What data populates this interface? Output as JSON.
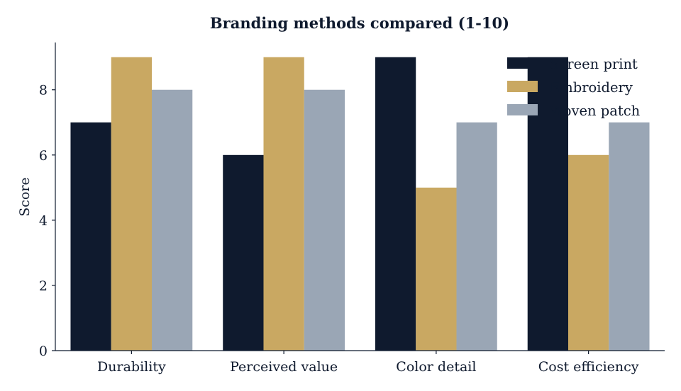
{
  "chart_data": {
    "type": "bar",
    "title": "Branding methods compared (1-10)",
    "xlabel": "",
    "ylabel": "Score",
    "categories": [
      "Durability",
      "Perceived value",
      "Color detail",
      "Cost efficiency"
    ],
    "series": [
      {
        "name": "Screen print",
        "values": [
          7,
          6,
          9,
          9
        ],
        "color": "#0f1a2e"
      },
      {
        "name": "Embroidery",
        "values": [
          9,
          9,
          5,
          6
        ],
        "color": "#c9a862"
      },
      {
        "name": "Woven patch",
        "values": [
          8,
          8,
          7,
          7
        ],
        "color": "#9aa6b5"
      }
    ],
    "ylim": [
      0,
      9.45
    ],
    "yticks": [
      0,
      2,
      4,
      6,
      8
    ],
    "grid": false,
    "legend_position": "top-right"
  }
}
